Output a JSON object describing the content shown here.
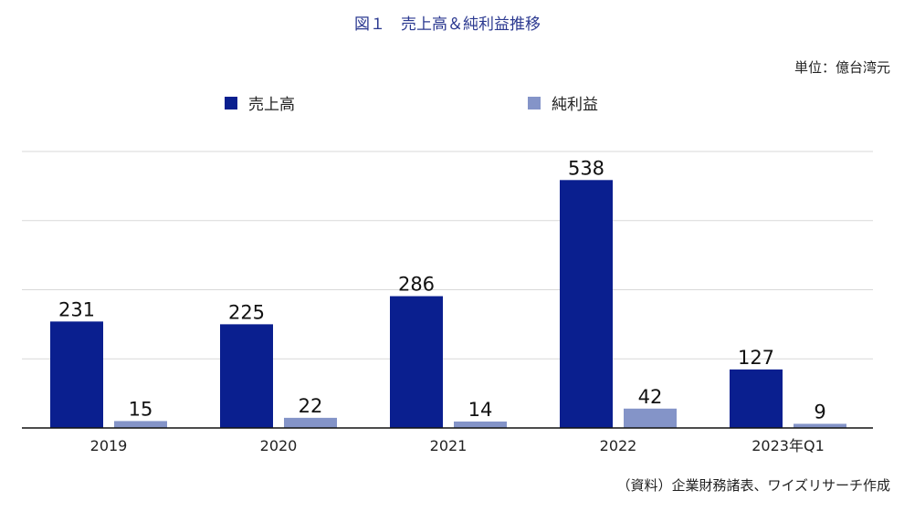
{
  "title": "図１　売上高＆純利益推移",
  "unit_label": "単位：億台湾元",
  "source": "（資料）企業財務諸表、ワイズリサーチ作成",
  "colors": {
    "revenue": "#0a1f8f",
    "net_income": "#8494c8",
    "title": "#2b3990"
  },
  "chart_data": {
    "type": "bar",
    "categories": [
      "2019",
      "2020",
      "2021",
      "2022",
      "2023年Q1"
    ],
    "series": [
      {
        "name": "売上高",
        "values": [
          231,
          225,
          286,
          538,
          127
        ]
      },
      {
        "name": "純利益",
        "values": [
          15,
          22,
          14,
          42,
          9
        ]
      }
    ],
    "ylim": [
      0,
      600
    ],
    "grid": true,
    "legend_position": "top"
  }
}
